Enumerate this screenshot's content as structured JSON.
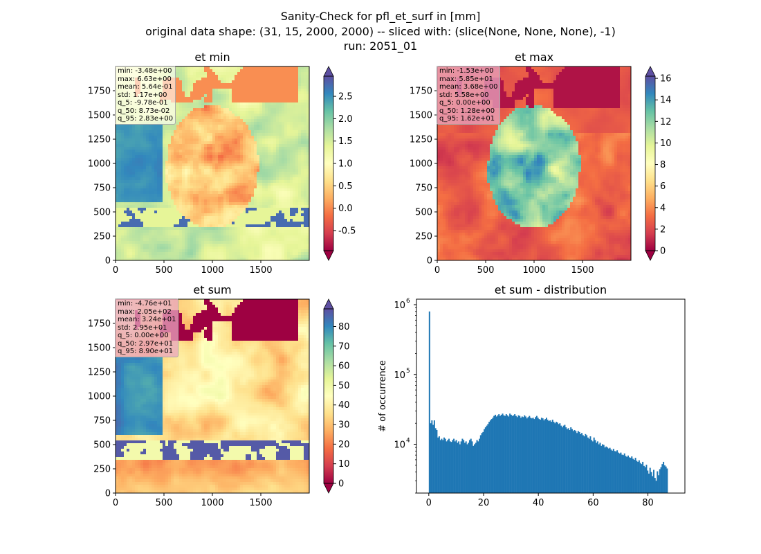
{
  "suptitle": [
    "Sanity-Check for pfl_et_surf in [mm]",
    "original data shape: (31, 15, 2000, 2000) -- sliced with: (slice(None, None, None), -1)",
    "run: 2051_01"
  ],
  "colormap": [
    "#9e0142",
    "#d53e4f",
    "#f46d43",
    "#fdae61",
    "#fee08b",
    "#ffffbf",
    "#e6f598",
    "#abdda4",
    "#66c2a5",
    "#3288bd",
    "#5e4fa2"
  ],
  "hist_color": "#1f77b4",
  "chart_data": [
    {
      "type": "heatmap",
      "title": "et min",
      "xticks": [
        "0",
        "500",
        "1000",
        "1500"
      ],
      "yticks": [
        "0",
        "250",
        "500",
        "750",
        "1000",
        "1250",
        "1500",
        "1750"
      ],
      "xlim": [
        0,
        2000
      ],
      "ylim": [
        0,
        2000
      ],
      "colorbar": {
        "range": [
          -0.95,
          2.95
        ],
        "ticks": [
          "-0.5",
          "0.0",
          "0.5",
          "1.0",
          "1.5",
          "2.0",
          "2.5"
        ],
        "tick_values": [
          -0.5,
          0.0,
          0.5,
          1.0,
          1.5,
          2.0,
          2.5
        ],
        "extend": "both"
      },
      "stats": [
        "min: -3.48e+00",
        "max: 6.63e+00",
        "mean: 5.64e-01",
        "std: 1.17e+00",
        "q_5: -9.78e-01",
        "q_50: 8.73e-02",
        "q_95: 2.83e+00"
      ],
      "stats_box_color": "#ffffff"
    },
    {
      "type": "heatmap",
      "title": "et max",
      "xticks": [
        "0",
        "500",
        "1000",
        "1500"
      ],
      "yticks": [
        "0",
        "250",
        "500",
        "750",
        "1000",
        "1250",
        "1500",
        "1750"
      ],
      "xlim": [
        0,
        2000
      ],
      "ylim": [
        0,
        2000
      ],
      "colorbar": {
        "range": [
          0,
          16.2
        ],
        "ticks": [
          "0",
          "2",
          "4",
          "6",
          "8",
          "10",
          "12",
          "14",
          "16"
        ],
        "tick_values": [
          0,
          2,
          4,
          6,
          8,
          10,
          12,
          14,
          16
        ],
        "extend": "both"
      },
      "stats": [
        "min: -1.53e+00",
        "max: 5.85e+01",
        "mean: 3.68e+00",
        "std: 5.58e+00",
        "q_5: 0.00e+00",
        "q_50: 1.28e+00",
        "q_95: 1.62e+01"
      ],
      "stats_box_color": "#e8a6c0"
    },
    {
      "type": "heatmap",
      "title": "et sum",
      "xticks": [
        "0",
        "500",
        "1000",
        "1500"
      ],
      "yticks": [
        "0",
        "250",
        "500",
        "750",
        "1000",
        "1250",
        "1500",
        "1750"
      ],
      "xlim": [
        0,
        2000
      ],
      "ylim": [
        0,
        2000
      ],
      "colorbar": {
        "range": [
          0,
          89
        ],
        "ticks": [
          "0",
          "10",
          "20",
          "30",
          "40",
          "50",
          "60",
          "70",
          "80"
        ],
        "tick_values": [
          0,
          10,
          20,
          30,
          40,
          50,
          60,
          70,
          80
        ],
        "extend": "both"
      },
      "stats": [
        "min: -4.76e+01",
        "max: 2.05e+02",
        "mean: 3.24e+01",
        "std: 2.95e+01",
        "q_5: 0.00e+00",
        "q_50: 2.97e+01",
        "q_95: 8.90e+01"
      ],
      "stats_box_color": "#e8a6c0"
    },
    {
      "type": "bar",
      "title": "et sum - distribution",
      "ylabel": "# of occurrence",
      "xlabel": "",
      "yscale": "log",
      "ylim": [
        2000,
        1200000
      ],
      "xlim": [
        -4.5,
        93.5
      ],
      "xticks": [
        "0",
        "20",
        "40",
        "60",
        "80"
      ],
      "ytick_bases": [
        "10",
        "10",
        "10"
      ],
      "ytick_exps": [
        "4",
        "5",
        "6"
      ],
      "bin_start": 0,
      "bin_width": 0.445,
      "counts": [
        800000,
        20000,
        22000,
        19000,
        22000,
        17000,
        16000,
        12500,
        13000,
        11500,
        12000,
        11500,
        12500,
        12000,
        11000,
        11500,
        12000,
        11000,
        10800,
        11500,
        12000,
        11000,
        11500,
        10500,
        11000,
        10000,
        11000,
        12000,
        11500,
        10500,
        11000,
        10000,
        10500,
        11500,
        12000,
        11000,
        9500,
        10000,
        10500,
        11500,
        11000,
        12000,
        13500,
        14500,
        15000,
        16500,
        17500,
        18500,
        19500,
        21000,
        22000,
        23000,
        24000,
        25500,
        26500,
        25000,
        26000,
        27000,
        25500,
        26500,
        27500,
        26000,
        25500,
        27000,
        26000,
        25000,
        27500,
        26500,
        25500,
        26000,
        27000,
        25500,
        24500,
        26000,
        25500,
        24000,
        25000,
        24500,
        26000,
        25000,
        23500,
        24500,
        25500,
        24000,
        23500,
        24000,
        23000,
        24500,
        25500,
        24000,
        23000,
        22500,
        24000,
        23500,
        22000,
        23000,
        24000,
        22500,
        21500,
        22000,
        21000,
        22500,
        21000,
        20000,
        21000,
        20500,
        19500,
        20000,
        18500,
        17500,
        18500,
        19000,
        17500,
        16500,
        17000,
        16000,
        17500,
        16500,
        15500,
        16000,
        15500,
        14500,
        15500,
        15000,
        14000,
        14500,
        13500,
        13000,
        14000,
        13500,
        12500,
        12000,
        13000,
        11500,
        11000,
        12500,
        11500,
        10500,
        11000,
        10000,
        10500,
        9500,
        10000,
        9800,
        9000,
        9300,
        9000,
        8700,
        8900,
        8400,
        8100,
        8600,
        8000,
        7900,
        8200,
        7600,
        7400,
        7600,
        7100,
        7000,
        7400,
        6800,
        6600,
        6900,
        6500,
        6400,
        6700,
        6200,
        6000,
        6400,
        5800,
        5600,
        5900,
        5400,
        5200,
        5600,
        4900,
        4700,
        5100,
        4200,
        3800,
        4600,
        4000,
        3500,
        4300,
        3300,
        3000,
        4100,
        3600,
        4400,
        4700,
        5200,
        5600,
        5000,
        4800,
        4500
      ]
    }
  ]
}
